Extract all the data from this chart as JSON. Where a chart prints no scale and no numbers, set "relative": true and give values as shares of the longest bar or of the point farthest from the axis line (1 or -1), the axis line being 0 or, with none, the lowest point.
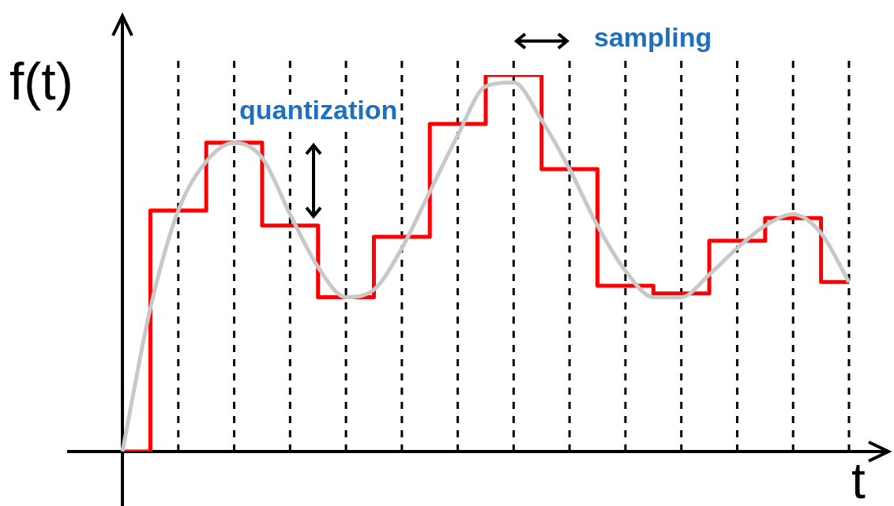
{
  "chart_data": {
    "type": "line",
    "relative": true,
    "xlabel": "t",
    "ylabel": "f(t)",
    "grid": "x",
    "legend": false,
    "annotations": [
      "quantization",
      "sampling"
    ],
    "categories": [
      null,
      null,
      null,
      null,
      null,
      null,
      null,
      null,
      null,
      null,
      null,
      null,
      null,
      null,
      null,
      null,
      null,
      null,
      null,
      null,
      null,
      null,
      null,
      null,
      null,
      null,
      null
    ],
    "series": [
      {
        "type": "line",
        "color": "#c8c8c8",
        "values": [
          0,
          0.38,
          0.64,
          0.77,
          0.82,
          0.78,
          0.63,
          0.49,
          0.41,
          0.43,
          0.54,
          0.69,
          0.84,
          0.97,
          0.98,
          0.88,
          0.75,
          0.6,
          0.48,
          0.41,
          0.41,
          0.47,
          0.54,
          0.6,
          0.63,
          0.58,
          0.45
        ]
      },
      {
        "type": "step",
        "color": "#ff0000",
        "values": [
          0,
          0,
          0.64,
          0.64,
          0.82,
          0.82,
          0.6,
          0.6,
          0.41,
          0.41,
          0.57,
          0.57,
          0.87,
          0.87,
          1,
          1,
          0.75,
          0.75,
          0.44,
          0.44,
          0.42,
          0.42,
          0.56,
          0.56,
          0.62,
          0.62,
          0.45
        ]
      }
    ]
  }
}
